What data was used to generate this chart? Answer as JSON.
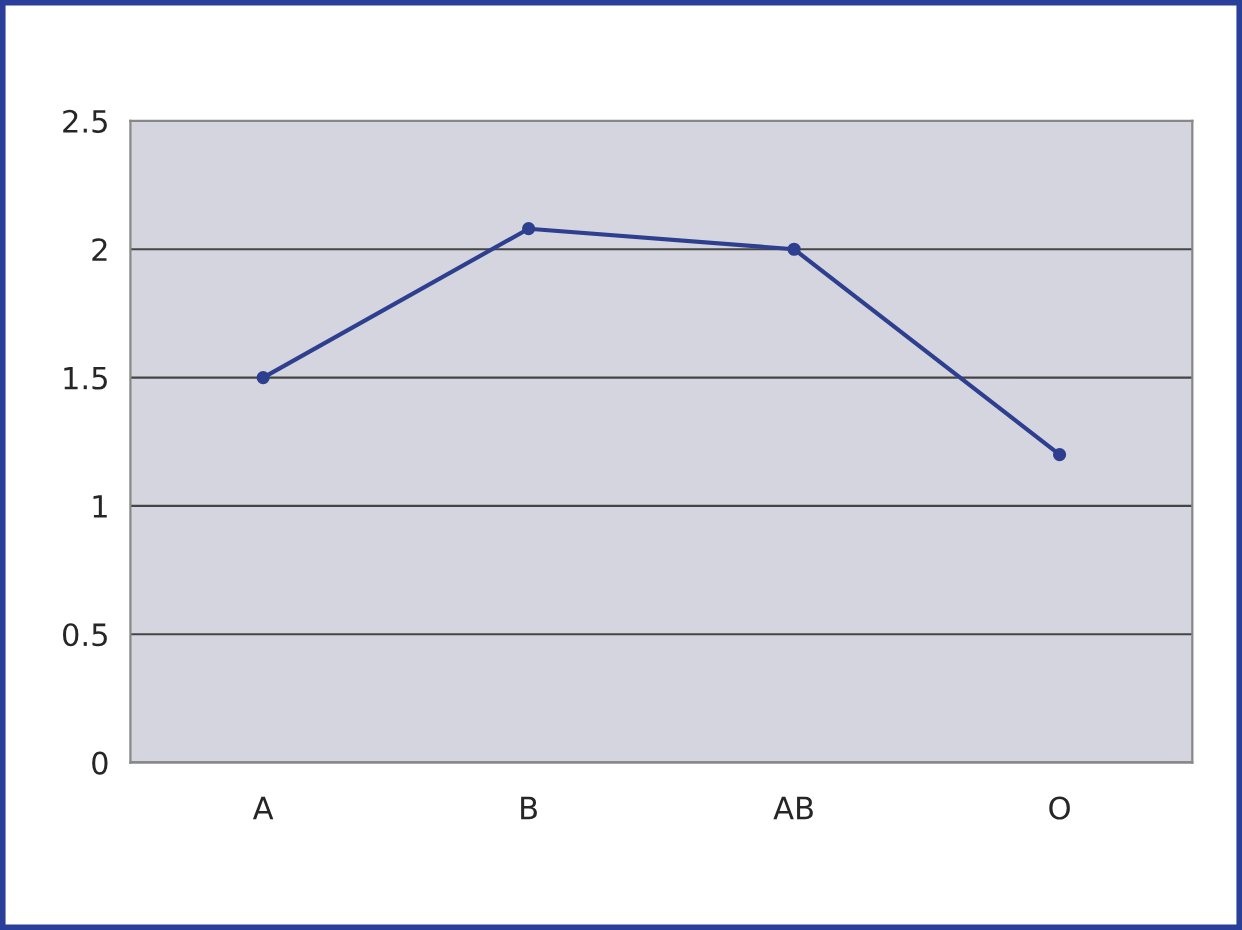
{
  "chart_data": {
    "type": "line",
    "categories": [
      "A",
      "B",
      "AB",
      "O"
    ],
    "series": [
      {
        "color": "#2e3f8f",
        "values": [
          1.5,
          2.08,
          2.0,
          1.2
        ]
      }
    ],
    "ylim": [
      0,
      2.5
    ],
    "yticks": [
      0,
      0.5,
      1,
      1.5,
      2,
      2.5
    ],
    "grid": "y",
    "marker": "circle",
    "line_style": "solid"
  }
}
